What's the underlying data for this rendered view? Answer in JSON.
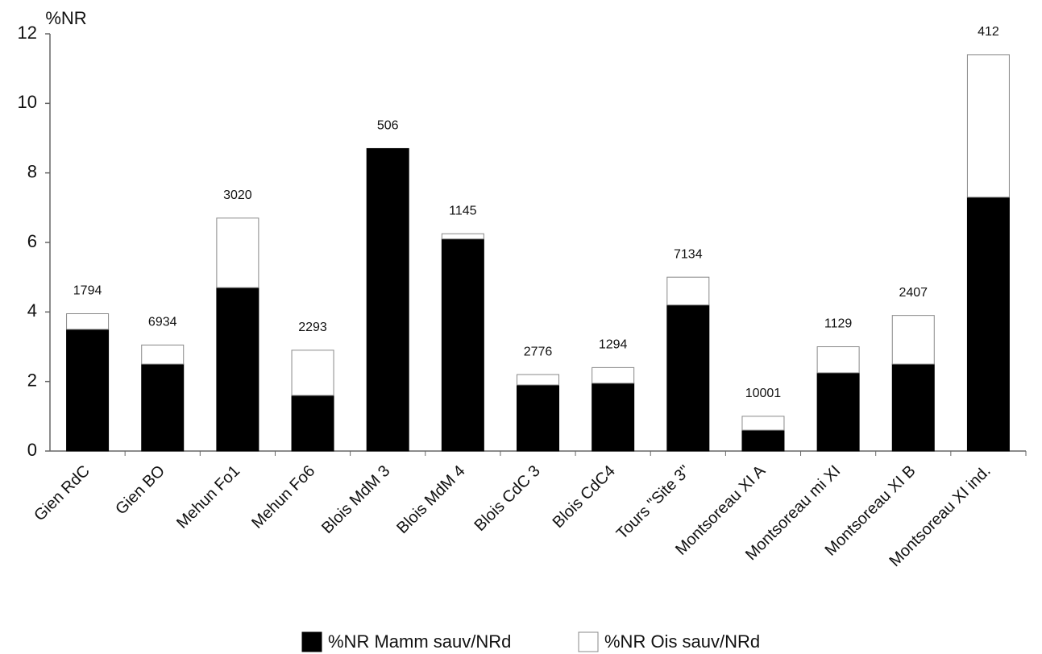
{
  "chart_data": {
    "type": "stacked-bar",
    "y_label": "%NR",
    "categories": [
      "Gien RdC",
      "Gien BO",
      "Mehun Fo1",
      "Mehun Fo6",
      "Blois MdM 3",
      "Blois MdM 4",
      "Blois CdC 3",
      "Blois CdC4",
      "Tours \"Site 3\"",
      "Montsoreau XI A",
      "Montsoreau mi XI",
      "Montsoreau XI B",
      "Montsoreau XI ind."
    ],
    "series": [
      {
        "name": "%NR Mamm sauv/NRd",
        "color": "#000000",
        "values": [
          3.5,
          2.5,
          4.7,
          1.6,
          8.7,
          6.1,
          1.9,
          1.95,
          4.2,
          0.6,
          2.25,
          2.5,
          7.3
        ]
      },
      {
        "name": "%NR Ois sauv/NRd",
        "color": "#ffffff",
        "values": [
          0.45,
          0.55,
          2.0,
          1.3,
          0,
          0.15,
          0.3,
          0.45,
          0.8,
          0.4,
          0.75,
          1.4,
          4.1
        ]
      }
    ],
    "sample_sizes": [
      1794,
      6934,
      3020,
      2293,
      506,
      1145,
      2776,
      1294,
      7134,
      10001,
      1129,
      2407,
      412
    ],
    "ylim": [
      0,
      12
    ],
    "yticks": [
      0,
      2,
      4,
      6,
      8,
      10,
      12
    ],
    "grid": false,
    "legend": "bottom"
  }
}
